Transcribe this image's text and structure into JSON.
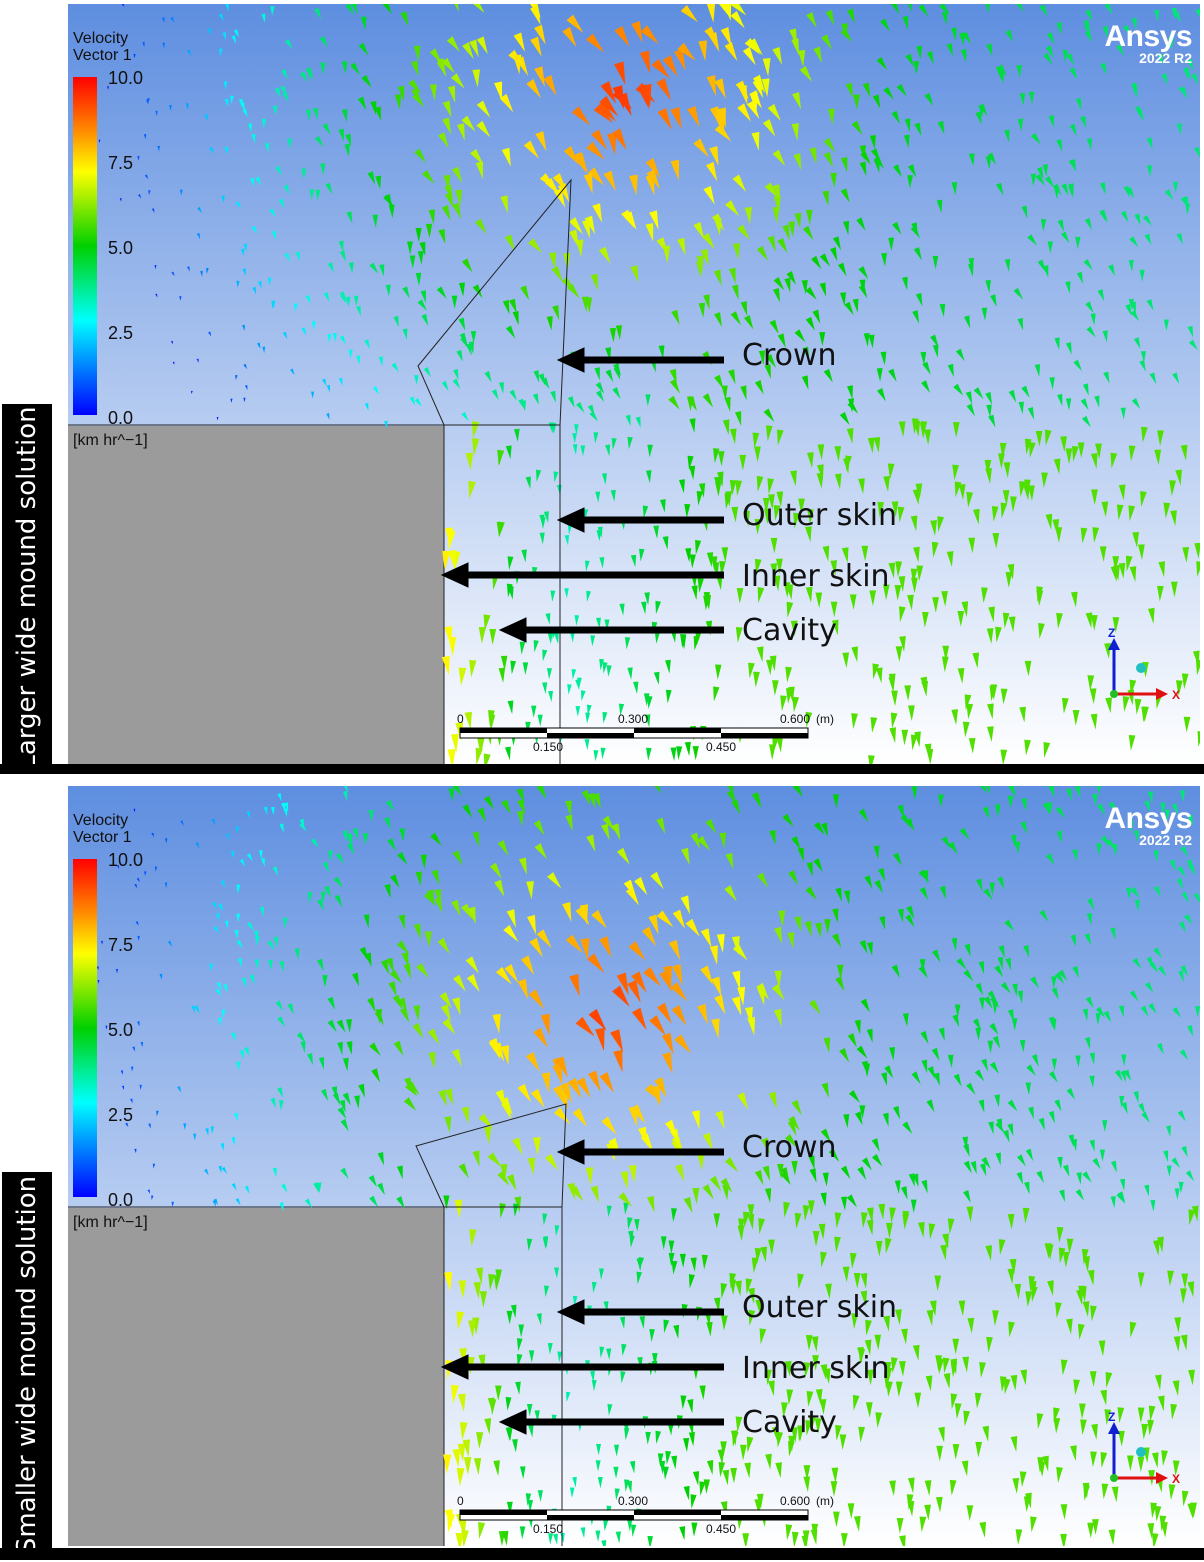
{
  "panels": [
    {
      "side_label": "Larger wide mound solution",
      "legend_title_1": "Velocity",
      "legend_title_2": "Vector 1",
      "ticks": [
        "10.0",
        "7.5",
        "5.0",
        "2.5",
        "0.0"
      ],
      "unit": "[km hr^−1]",
      "brand_name": "Ansys",
      "brand_version": "2022 R2",
      "callouts": [
        "Crown",
        "Outer skin",
        "Inner skin",
        "Cavity"
      ],
      "scale_top": [
        "0",
        "0.300",
        "0.600",
        "(m)"
      ],
      "scale_bottom": [
        "0.150",
        "0.450"
      ],
      "axis_z": "Z",
      "axis_x": "X"
    },
    {
      "side_label": "Smaller wide mound solution",
      "legend_title_1": "Velocity",
      "legend_title_2": "Vector 1",
      "ticks": [
        "10.0",
        "7.5",
        "5.0",
        "2.5",
        "0.0"
      ],
      "unit": "[km hr^−1]",
      "brand_name": "Ansys",
      "brand_version": "2022 R2",
      "callouts": [
        "Crown",
        "Outer skin",
        "Inner skin",
        "Cavity"
      ],
      "scale_top": [
        "0",
        "0.300",
        "0.600",
        "(m)"
      ],
      "scale_bottom": [
        "0.150",
        "0.450"
      ],
      "axis_z": "Z",
      "axis_x": "X"
    }
  ],
  "colors": {
    "sky_top": "#5e8ee0",
    "sky_bottom": "#ffffff",
    "wall": "#9b9b9b"
  }
}
